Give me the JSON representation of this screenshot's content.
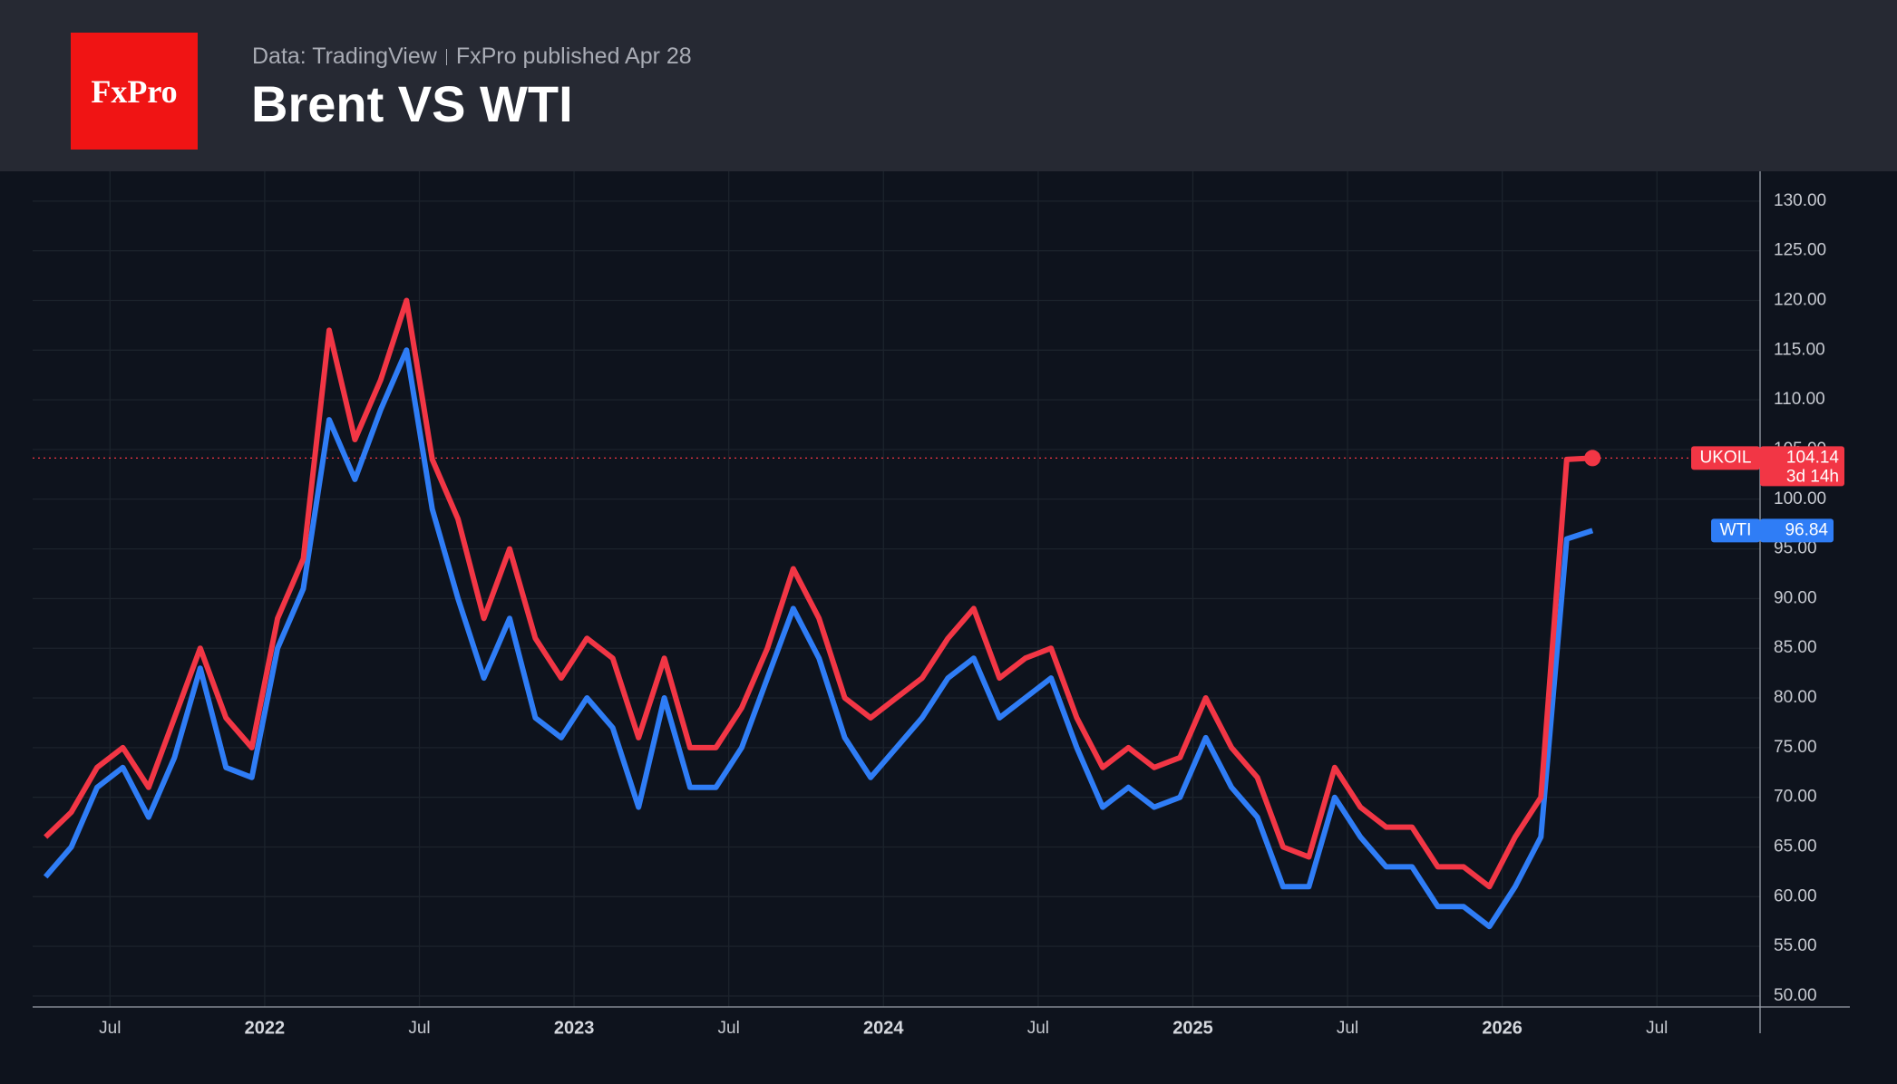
{
  "header": {
    "logo": "FxPro",
    "source": "Data: TradingView",
    "published": "FxPro published Apr 28",
    "title": "Brent VS WTI"
  },
  "chart_data": {
    "type": "line",
    "x": [
      "2021-04",
      "2021-05",
      "2021-06",
      "2021-07",
      "2021-08",
      "2021-09",
      "2021-10",
      "2021-11",
      "2021-12",
      "2022-01",
      "2022-02",
      "2022-03",
      "2022-04",
      "2022-05",
      "2022-06",
      "2022-07",
      "2022-08",
      "2022-09",
      "2022-10",
      "2022-11",
      "2022-12",
      "2023-01",
      "2023-02",
      "2023-03",
      "2023-04",
      "2023-05",
      "2023-06",
      "2023-07",
      "2023-08",
      "2023-09",
      "2023-10",
      "2023-11",
      "2023-12",
      "2024-01",
      "2024-02",
      "2024-03",
      "2024-04",
      "2024-05",
      "2024-06",
      "2024-07",
      "2024-08",
      "2024-09",
      "2024-10",
      "2024-11",
      "2024-12",
      "2025-01",
      "2025-02",
      "2025-03",
      "2025-04",
      "2025-05",
      "2025-06",
      "2025-07",
      "2025-08",
      "2025-09",
      "2025-10",
      "2025-11",
      "2025-12",
      "2026-01",
      "2026-02",
      "2026-03",
      "2026-04"
    ],
    "series": [
      {
        "name": "UKOIL",
        "color": "#f23645",
        "values": [
          66,
          68.5,
          73,
          75,
          71,
          78,
          85,
          78,
          75,
          88,
          94,
          117,
          106,
          112,
          120,
          104,
          98,
          88,
          95,
          86,
          82,
          86,
          84,
          76,
          84,
          75,
          75,
          79,
          85,
          93,
          88,
          80,
          78,
          80,
          82,
          86,
          89,
          82,
          84,
          85,
          78,
          73,
          75,
          73,
          74,
          80,
          75,
          72,
          65,
          64,
          73,
          69,
          67,
          67,
          63,
          63,
          61,
          66,
          70,
          104,
          104.14
        ]
      },
      {
        "name": "WTI",
        "color": "#2f7df6",
        "values": [
          62,
          65,
          71,
          73,
          68,
          74,
          83,
          73,
          72,
          85,
          91,
          108,
          102,
          109,
          115,
          99,
          90,
          82,
          88,
          78,
          76,
          80,
          77,
          69,
          80,
          71,
          71,
          75,
          82,
          89,
          84,
          76,
          72,
          75,
          78,
          82,
          84,
          78,
          80,
          82,
          75,
          69,
          71,
          69,
          70,
          76,
          71,
          68,
          61,
          61,
          70,
          66,
          63,
          63,
          59,
          59,
          57,
          61,
          66,
          96,
          96.84
        ]
      }
    ],
    "countdown": "3d 14h",
    "xlim": [
      "2021-04",
      "2026-11"
    ],
    "xticks": [
      {
        "value": "2021-07",
        "label": "Jul"
      },
      {
        "value": "2022-01",
        "label": "2022"
      },
      {
        "value": "2022-07",
        "label": "Jul"
      },
      {
        "value": "2023-01",
        "label": "2023"
      },
      {
        "value": "2023-07",
        "label": "Jul"
      },
      {
        "value": "2024-01",
        "label": "2024"
      },
      {
        "value": "2024-07",
        "label": "Jul"
      },
      {
        "value": "2025-01",
        "label": "2025"
      },
      {
        "value": "2025-07",
        "label": "Jul"
      },
      {
        "value": "2026-01",
        "label": "2026"
      },
      {
        "value": "2026-07",
        "label": "Jul"
      }
    ],
    "ylim": [
      48.9,
      133
    ],
    "yticks": [
      {
        "value": 50,
        "label": "50.00"
      },
      {
        "value": 55,
        "label": "55.00"
      },
      {
        "value": 60,
        "label": "60.00"
      },
      {
        "value": 65,
        "label": "65.00"
      },
      {
        "value": 70,
        "label": "70.00"
      },
      {
        "value": 75,
        "label": "75.00"
      },
      {
        "value": 80,
        "label": "80.00"
      },
      {
        "value": 85,
        "label": "85.00"
      },
      {
        "value": 90,
        "label": "90.00"
      },
      {
        "value": 95,
        "label": "95.00"
      },
      {
        "value": 100,
        "label": "100.00"
      },
      {
        "value": 105,
        "label": "105.00"
      },
      {
        "value": 110,
        "label": "110.00"
      },
      {
        "value": 115,
        "label": "115.00"
      },
      {
        "value": 120,
        "label": "120.00"
      },
      {
        "value": 125,
        "label": "125.00"
      },
      {
        "value": 130,
        "label": "130.00"
      }
    ],
    "grid": true
  }
}
